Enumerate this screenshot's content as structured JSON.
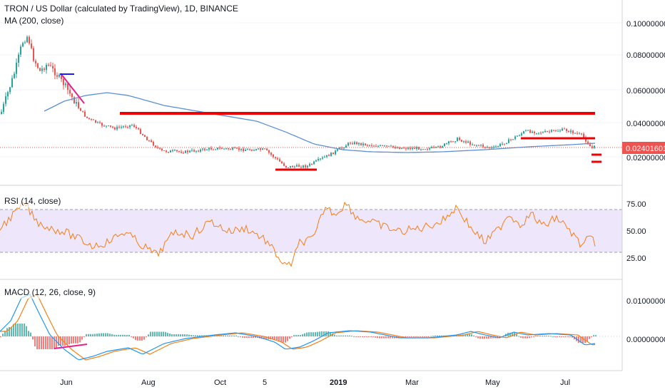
{
  "header": {
    "title": "TRON / US Dollar (calculated by TradingView), 1D, BINANCE",
    "ma_label": "MA (200, close)"
  },
  "price_pane": {
    "price_axis": [
      "0.10000000",
      "0.08000000",
      "0.06000000",
      "0.04000000",
      "0.02000000"
    ],
    "current_price": "0.02401601",
    "colors": {
      "up": "#26a69a",
      "down": "#ef5350",
      "ma": "#5b8fd6",
      "resistance": "#f00000",
      "trend_pink": "#e91e8c",
      "blue_mark": "#1a1aff",
      "price_line": "#ef5350"
    }
  },
  "rsi_pane": {
    "label": "RSI (14, close)",
    "axis": [
      "75.00",
      "50.00",
      "25.00"
    ],
    "colors": {
      "line": "#f57f17",
      "band": "#e8ddf8"
    }
  },
  "macd_pane": {
    "label": "MACD (12, 26, close, 9)",
    "axis": [
      "0.01000000",
      "0.00000000"
    ],
    "colors": {
      "macd": "#2196f3",
      "signal": "#f57f17",
      "hist_up": "#26a69a",
      "hist_down": "#ef5350"
    }
  },
  "time_axis": [
    "Jun",
    "Aug",
    "Oct",
    "5",
    "2019",
    "Mar",
    "May",
    "Jul"
  ]
}
